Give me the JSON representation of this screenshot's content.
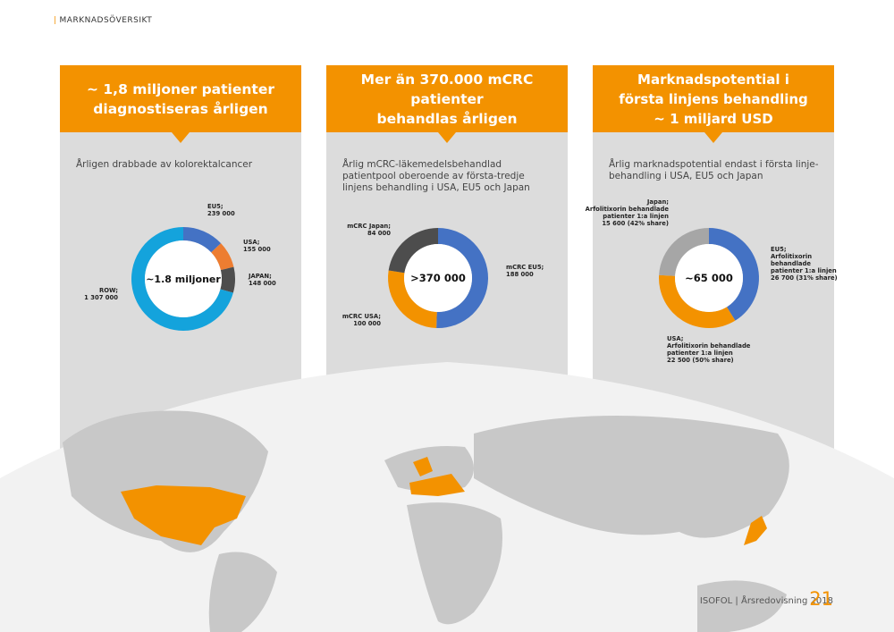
{
  "section": "MARKNADSÖVERSIKT",
  "colors": {
    "accent": "#f39200",
    "blue": "#4472c4",
    "orange": "#f39200",
    "dark": "#4d4d4d",
    "light_blue": "#14a3dc",
    "grey": "#a6a6a6",
    "panel": "#dcdcdc"
  },
  "panels": [
    {
      "heading": "~ 1,8 miljoner patienter\ndiagnostiseras årligen",
      "description": "Årligen drabbade av kolorektalcancer"
    },
    {
      "heading": "Mer än 370.000 mCRC patienter\nbehandlas årligen",
      "description": "Årlig mCRC-läkemedelsbehandlad\npatientpool oberoende av första-tredje\nlinjens behandling i USA, EU5 och Japan"
    },
    {
      "heading": "Marknadspotential i\nförsta linjens behandling\n~ 1 miljard USD",
      "description": "Årlig marknadspotential endast i första linje-\nbehandling i USA, EU5 och Japan"
    }
  ],
  "chart_data": [
    {
      "type": "pie",
      "center_label": "~1.8 miljoner",
      "slices": [
        {
          "label": "EU5;\n239 000",
          "value": 239000,
          "color": "#4472c4"
        },
        {
          "label": "USA;\n155 000",
          "value": 155000,
          "color": "#ed7d31"
        },
        {
          "label": "JAPAN;\n148 000",
          "value": 148000,
          "color": "#4d4d4d"
        },
        {
          "label": "ROW;\n1 307 000",
          "value": 1307000,
          "color": "#14a3dc"
        }
      ]
    },
    {
      "type": "pie",
      "center_label": ">370 000",
      "slices": [
        {
          "label": "mCRC EU5;\n188 000",
          "value": 188000,
          "color": "#4472c4"
        },
        {
          "label": "mCRC USA;\n100 000",
          "value": 100000,
          "color": "#f39200"
        },
        {
          "label": "mCRC Japan;\n84 000",
          "value": 84000,
          "color": "#4d4d4d"
        }
      ]
    },
    {
      "type": "pie",
      "center_label": "~65 000",
      "slices": [
        {
          "label": "EU5;\nArfolitixorin\nbehandlade\npatienter 1:a linjen\n26 700 (31% share)",
          "value": 26700,
          "color": "#4472c4"
        },
        {
          "label": "USA;\nArfolitixorin behandlade\npatienter 1:a linjen\n22 500 (50% share)",
          "value": 22500,
          "color": "#f39200"
        },
        {
          "label": "Japan;\nArfolitixorin behandlade\npatienter 1:a linjen\n15 600 (42% share)",
          "value": 15600,
          "color": "#a6a6a6"
        }
      ]
    }
  ],
  "footer": {
    "text": "ISOFOL | Årsredovisning 2018",
    "page": "21"
  }
}
